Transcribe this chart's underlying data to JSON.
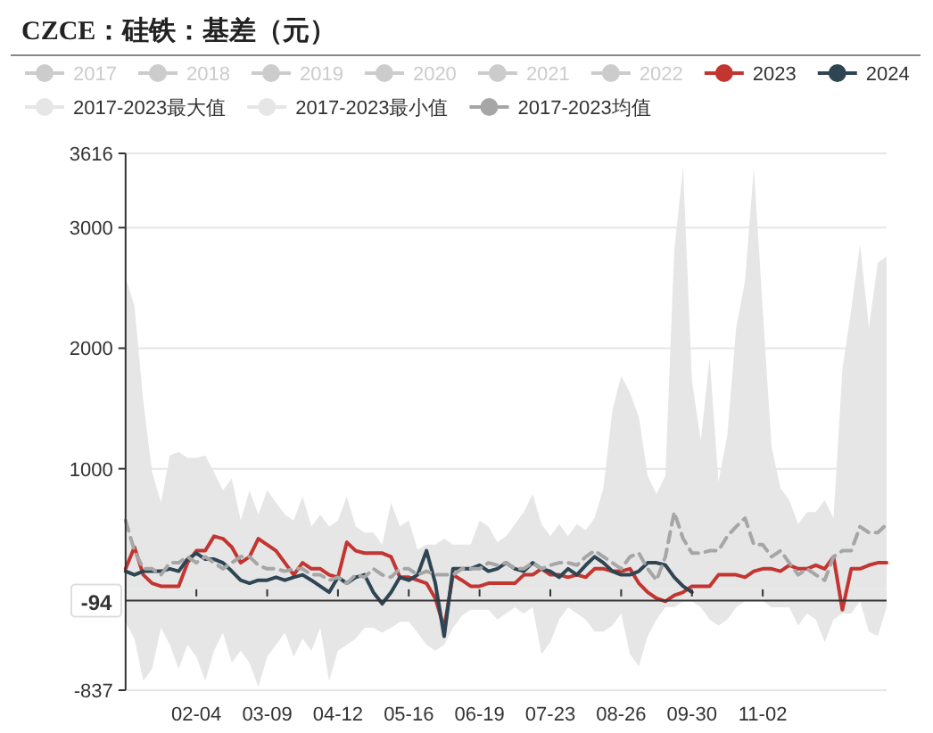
{
  "chart_data": {
    "type": "line",
    "title": "CZCE：硅铁：基差（元）",
    "categories": [
      null,
      null,
      null,
      null,
      null,
      null,
      null,
      null,
      "02-04",
      null,
      null,
      null,
      null,
      null,
      null,
      null,
      "03-09",
      null,
      null,
      null,
      null,
      null,
      null,
      null,
      "04-12",
      null,
      null,
      null,
      null,
      null,
      null,
      null,
      "05-16",
      null,
      null,
      null,
      null,
      null,
      null,
      null,
      "06-19",
      null,
      null,
      null,
      null,
      null,
      null,
      null,
      "07-23",
      null,
      null,
      null,
      null,
      null,
      null,
      null,
      "08-26",
      null,
      null,
      null,
      null,
      null,
      null,
      null,
      "09-30",
      null,
      null,
      null,
      null,
      null,
      null,
      null,
      "11-02",
      null,
      null,
      null,
      null,
      null,
      null,
      null,
      null,
      null,
      null,
      null,
      null,
      null,
      null
    ],
    "series": [
      {
        "name": "2017",
        "color": "#cccccc",
        "values": [
          null,
          null,
          null,
          null,
          null,
          null,
          null,
          null,
          null,
          null,
          null,
          null,
          null,
          null,
          null,
          null,
          null,
          null,
          null,
          null,
          null,
          null,
          null,
          null,
          null,
          null,
          null,
          null,
          null,
          null,
          null,
          null,
          null,
          null,
          null,
          null,
          null,
          null,
          null,
          null,
          null,
          null,
          null,
          null,
          null,
          null,
          null,
          null,
          null,
          null,
          null,
          null,
          null,
          null,
          null,
          null,
          null,
          null,
          null,
          null,
          null,
          null,
          null,
          null,
          null,
          null,
          null,
          null,
          null,
          null,
          null,
          null,
          null,
          null,
          null,
          null,
          null,
          null,
          null,
          null,
          null,
          null,
          null,
          null,
          null,
          null,
          null
        ]
      },
      {
        "name": "2018",
        "color": "#cccccc",
        "values": [
          null,
          null,
          null,
          null,
          null,
          null,
          null,
          null,
          null,
          null,
          null,
          null,
          null,
          null,
          null,
          null,
          null,
          null,
          null,
          null,
          null,
          null,
          null,
          null,
          null,
          null,
          null,
          null,
          null,
          null,
          null,
          null,
          null,
          null,
          null,
          null,
          null,
          null,
          null,
          null,
          null,
          null,
          null,
          null,
          null,
          null,
          null,
          null,
          null,
          null,
          null,
          null,
          null,
          null,
          null,
          null,
          null,
          null,
          null,
          null,
          null,
          null,
          null,
          null,
          null,
          null,
          null,
          null,
          null,
          null,
          null,
          null,
          null,
          null,
          null,
          null,
          null,
          null,
          null,
          null,
          null,
          null,
          null,
          null,
          null,
          null,
          null
        ]
      },
      {
        "name": "2019",
        "color": "#cccccc",
        "values": [
          null,
          null,
          null,
          null,
          null,
          null,
          null,
          null,
          null,
          null,
          null,
          null,
          null,
          null,
          null,
          null,
          null,
          null,
          null,
          null,
          null,
          null,
          null,
          null,
          null,
          null,
          null,
          null,
          null,
          null,
          null,
          null,
          null,
          null,
          null,
          null,
          null,
          null,
          null,
          null,
          null,
          null,
          null,
          null,
          null,
          null,
          null,
          null,
          null,
          null,
          null,
          null,
          null,
          null,
          null,
          null,
          null,
          null,
          null,
          null,
          null,
          null,
          null,
          null,
          null,
          null,
          null,
          null,
          null,
          null,
          null,
          null,
          null,
          null,
          null,
          null,
          null,
          null,
          null,
          null,
          null,
          null,
          null,
          null,
          null,
          null,
          null
        ]
      },
      {
        "name": "2020",
        "color": "#cccccc",
        "values": [
          null,
          null,
          null,
          null,
          null,
          null,
          null,
          null,
          null,
          null,
          null,
          null,
          null,
          null,
          null,
          null,
          null,
          null,
          null,
          null,
          null,
          null,
          null,
          null,
          null,
          null,
          null,
          null,
          null,
          null,
          null,
          null,
          null,
          null,
          null,
          null,
          null,
          null,
          null,
          null,
          null,
          null,
          null,
          null,
          null,
          null,
          null,
          null,
          null,
          null,
          null,
          null,
          null,
          null,
          null,
          null,
          null,
          null,
          null,
          null,
          null,
          null,
          null,
          null,
          null,
          null,
          null,
          null,
          null,
          null,
          null,
          null,
          null,
          null,
          null,
          null,
          null,
          null,
          null,
          null,
          null,
          null,
          null,
          null,
          null,
          null,
          null
        ]
      },
      {
        "name": "2021",
        "color": "#cccccc",
        "values": [
          null,
          null,
          null,
          null,
          null,
          null,
          null,
          null,
          null,
          null,
          null,
          null,
          null,
          null,
          null,
          null,
          null,
          null,
          null,
          null,
          null,
          null,
          null,
          null,
          null,
          null,
          null,
          null,
          null,
          null,
          null,
          null,
          null,
          null,
          null,
          null,
          null,
          null,
          null,
          null,
          null,
          null,
          null,
          null,
          null,
          null,
          null,
          null,
          null,
          null,
          null,
          null,
          null,
          null,
          null,
          null,
          null,
          null,
          null,
          null,
          null,
          null,
          null,
          null,
          null,
          null,
          null,
          null,
          null,
          null,
          null,
          null,
          null,
          null,
          null,
          null,
          null,
          null,
          null,
          null,
          null,
          null,
          null,
          null,
          null,
          null,
          null
        ]
      },
      {
        "name": "2022",
        "color": "#cccccc",
        "values": [
          null,
          null,
          null,
          null,
          null,
          null,
          null,
          null,
          null,
          null,
          null,
          null,
          null,
          null,
          null,
          null,
          null,
          null,
          null,
          null,
          null,
          null,
          null,
          null,
          null,
          null,
          null,
          null,
          null,
          null,
          null,
          null,
          null,
          null,
          null,
          null,
          null,
          null,
          null,
          null,
          null,
          null,
          null,
          null,
          null,
          null,
          null,
          null,
          null,
          null,
          null,
          null,
          null,
          null,
          null,
          null,
          null,
          null,
          null,
          null,
          null,
          null,
          null,
          null,
          null,
          null,
          null,
          null,
          null,
          null,
          null,
          null,
          null,
          null,
          null,
          null,
          null,
          null,
          null,
          null,
          null,
          null,
          null,
          null,
          null,
          null,
          null
        ]
      },
      {
        "name": "2023",
        "color": "#c23531",
        "values": [
          170,
          350,
          120,
          50,
          25,
          25,
          25,
          220,
          320,
          320,
          440,
          420,
          350,
          220,
          270,
          420,
          370,
          320,
          220,
          120,
          220,
          170,
          170,
          120,
          100,
          390,
          320,
          300,
          300,
          300,
          270,
          100,
          100,
          75,
          50,
          -75,
          -320,
          120,
          75,
          25,
          25,
          50,
          50,
          50,
          50,
          120,
          120,
          170,
          120,
          120,
          100,
          120,
          100,
          170,
          170,
          150,
          150,
          170,
          50,
          -25,
          -75,
          -100,
          -50,
          -25,
          25,
          25,
          25,
          120,
          120,
          120,
          100,
          150,
          170,
          170,
          150,
          200,
          170,
          170,
          200,
          170,
          270,
          -170,
          170,
          170,
          200,
          220,
          220
        ]
      },
      {
        "name": "2024",
        "color": "#2f4554",
        "values": [
          150,
          120,
          150,
          150,
          150,
          170,
          150,
          250,
          300,
          250,
          250,
          220,
          150,
          75,
          50,
          75,
          75,
          100,
          75,
          100,
          120,
          75,
          25,
          -25,
          100,
          50,
          100,
          120,
          -25,
          -120,
          -25,
          100,
          75,
          120,
          320,
          50,
          -390,
          170,
          170,
          170,
          200,
          150,
          170,
          220,
          170,
          150,
          220,
          170,
          150,
          100,
          170,
          120,
          200,
          270,
          220,
          150,
          120,
          120,
          150,
          220,
          220,
          200,
          100,
          25,
          -25,
          null,
          null,
          null,
          null,
          null,
          null,
          null,
          null,
          null,
          null,
          null,
          null,
          null,
          null,
          null,
          null,
          null,
          null,
          null,
          null,
          null,
          null
        ]
      },
      {
        "name": "2017-2023最大值",
        "type": "area",
        "color": "#e6e6e6",
        "values": [
          2590,
          2350,
          1560,
          970,
          720,
          1110,
          1140,
          1090,
          1090,
          1110,
          970,
          820,
          920,
          570,
          820,
          620,
          820,
          720,
          620,
          570,
          770,
          520,
          620,
          520,
          570,
          770,
          520,
          470,
          470,
          370,
          720,
          520,
          570,
          330,
          370,
          370,
          420,
          370,
          370,
          370,
          570,
          520,
          390,
          440,
          540,
          640,
          790,
          540,
          440,
          540,
          440,
          540,
          490,
          590,
          840,
          1480,
          1770,
          1630,
          1430,
          940,
          790,
          940,
          2810,
          3500,
          1730,
          1230,
          1920,
          890,
          1280,
          2170,
          2560,
          3500,
          2320,
          1180,
          840,
          740,
          540,
          640,
          640,
          740,
          590,
          1820,
          2320,
          2860,
          2170,
          2710,
          2760
        ]
      },
      {
        "name": "2017-2023最小值",
        "type": "area",
        "color": "#e6e6e6",
        "values": [
          -270,
          -410,
          -760,
          -660,
          -320,
          -460,
          -660,
          -460,
          -560,
          -760,
          -510,
          -360,
          -610,
          -510,
          -610,
          -810,
          -560,
          -460,
          -360,
          -560,
          -410,
          -510,
          -320,
          -760,
          -510,
          -460,
          -410,
          -320,
          -320,
          -360,
          -320,
          -270,
          -270,
          -360,
          -460,
          -510,
          -460,
          -320,
          -220,
          -170,
          -170,
          -170,
          -250,
          -200,
          -150,
          -200,
          -150,
          -540,
          -440,
          -250,
          -150,
          -200,
          -250,
          -350,
          -350,
          -300,
          -200,
          -540,
          -640,
          -390,
          -250,
          -150,
          -150,
          -100,
          -100,
          -150,
          -250,
          -300,
          -250,
          -150,
          -100,
          -100,
          -100,
          -150,
          -150,
          -150,
          -300,
          -200,
          -250,
          -440,
          -250,
          -200,
          -200,
          -100,
          -350,
          -390,
          -150
        ]
      },
      {
        "name": "2017-2023均值",
        "line_style": "dashed",
        "color": "#a6a6a6",
        "values": [
          570,
          320,
          170,
          170,
          120,
          220,
          220,
          270,
          220,
          270,
          220,
          170,
          220,
          270,
          270,
          200,
          170,
          170,
          150,
          170,
          170,
          120,
          120,
          75,
          100,
          50,
          120,
          100,
          170,
          120,
          100,
          170,
          170,
          120,
          150,
          120,
          120,
          120,
          170,
          170,
          170,
          220,
          200,
          220,
          170,
          170,
          220,
          170,
          200,
          220,
          220,
          200,
          270,
          320,
          270,
          220,
          170,
          270,
          300,
          170,
          75,
          270,
          640,
          420,
          300,
          300,
          320,
          320,
          440,
          520,
          590,
          370,
          370,
          270,
          320,
          220,
          120,
          170,
          120,
          75,
          270,
          320,
          320,
          520,
          470,
          470,
          540
        ]
      }
    ],
    "ylim": [
      -837,
      3616
    ],
    "yticks": [
      -837,
      1000,
      2000,
      3000,
      3616
    ],
    "ref_lines": [
      {
        "axis": "y",
        "value": -94,
        "label": "-94",
        "color": "#333333"
      }
    ],
    "grid": "y",
    "legend": "top",
    "marker": "none"
  }
}
